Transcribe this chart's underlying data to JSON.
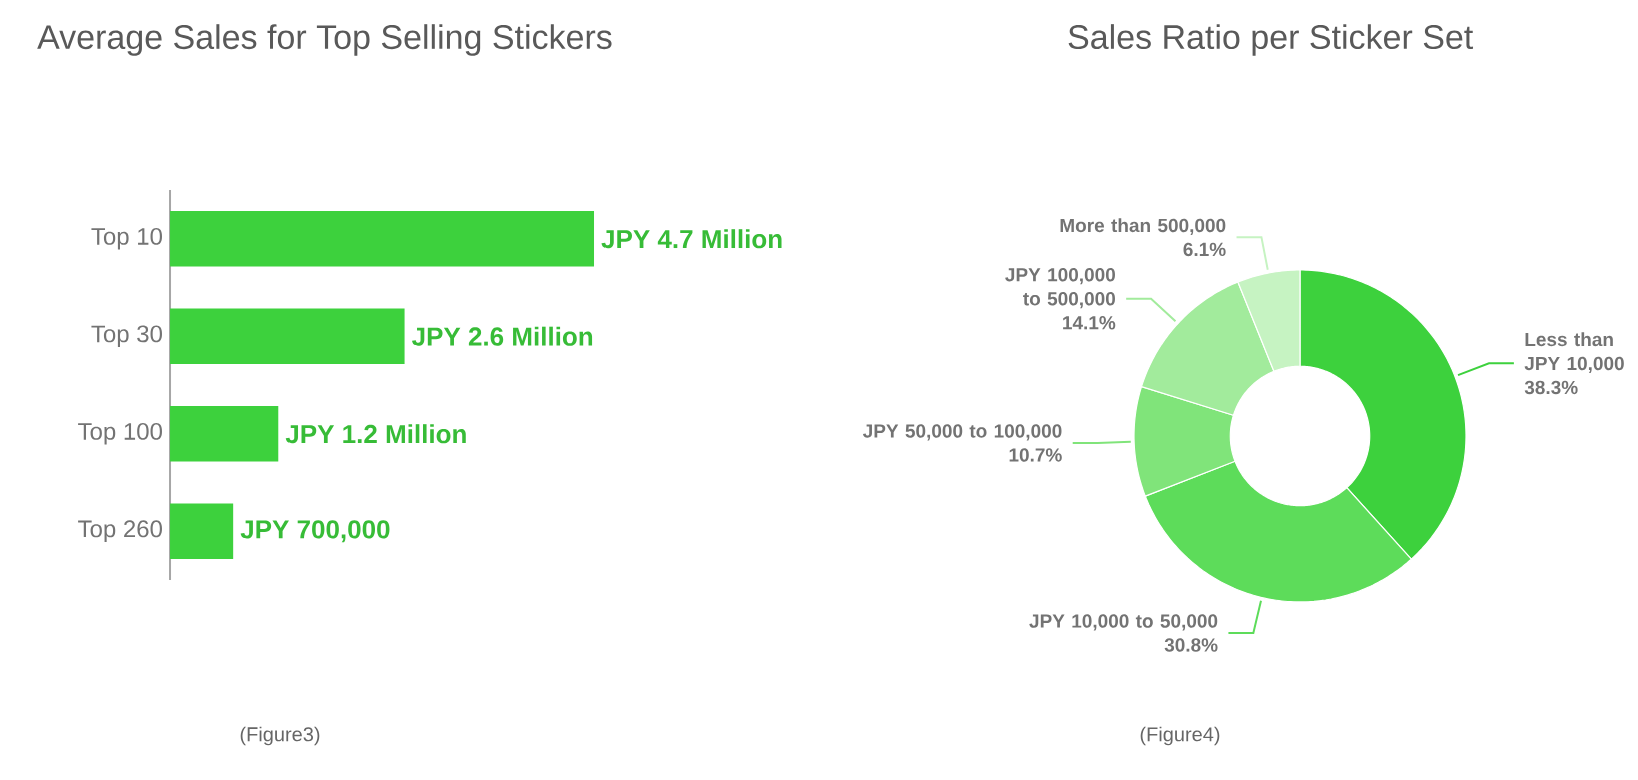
{
  "chart_data": [
    {
      "type": "bar",
      "orientation": "horizontal",
      "title": "Average Sales for Top Selling Stickers",
      "categories": [
        "Top 10",
        "Top 30",
        "Top 100",
        "Top 260"
      ],
      "values": [
        4.7,
        2.6,
        1.2,
        0.7
      ],
      "value_labels": [
        "JPY 4.7 Million",
        "JPY 2.6 Million",
        "JPY 1.2 Million",
        "JPY 700,000"
      ],
      "color": "#3dd13d",
      "annotations": [
        "(Figure3)"
      ]
    },
    {
      "type": "donut",
      "title": "Sales Ratio per Sticker Set",
      "categories": [
        "Less than JPY 10,000",
        "JPY 10,000 to 50,000",
        "JPY 50,000 to 100,000",
        "JPY 100,000 to 500,000",
        "More than 500,000"
      ],
      "values": [
        38.3,
        30.8,
        10.7,
        14.1,
        6.1
      ],
      "value_labels": [
        "38.3%",
        "30.8%",
        "10.7%",
        "14.1%",
        "6.1%"
      ],
      "colors": [
        "#3dd13d",
        "#5ddc5a",
        "#80e47a",
        "#a2eb9c",
        "#c6f3c2"
      ],
      "annotations": [
        "(Figure4)"
      ]
    }
  ]
}
